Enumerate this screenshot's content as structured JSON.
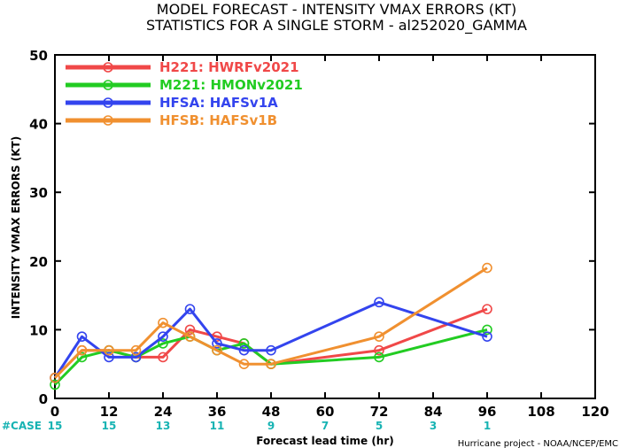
{
  "chart_data": {
    "type": "line",
    "title": "MODEL FORECAST - INTENSITY VMAX ERRORS (KT)",
    "subtitle": "STATISTICS FOR A SINGLE STORM - al252020_GAMMA",
    "xlabel": "Forecast lead time (hr)",
    "ylabel": "INTENSITY VMAX ERRORS (KT)",
    "xlim": [
      0,
      120
    ],
    "ylim": [
      0,
      50
    ],
    "xticks": [
      0,
      12,
      24,
      36,
      48,
      60,
      72,
      84,
      96,
      108,
      120
    ],
    "yticks": [
      0,
      10,
      20,
      30,
      40,
      50
    ],
    "series": [
      {
        "name": "H221: HWRFv2021",
        "color": "#f04848",
        "x": [
          0,
          6,
          12,
          18,
          24,
          30,
          36,
          42,
          48,
          72,
          96
        ],
        "y": [
          3,
          7,
          7,
          6,
          6,
          10,
          9,
          8,
          5,
          7,
          13
        ]
      },
      {
        "name": "M221: HMONv2021",
        "color": "#22cc22",
        "x": [
          0,
          6,
          12,
          18,
          24,
          30,
          36,
          42,
          48,
          72,
          96
        ],
        "y": [
          2,
          6,
          7,
          6,
          8,
          9,
          7,
          8,
          5,
          6,
          10
        ]
      },
      {
        "name": "HFSA: HAFSv1A",
        "color": "#3344ee",
        "x": [
          0,
          6,
          12,
          18,
          24,
          30,
          36,
          42,
          48,
          72,
          96
        ],
        "y": [
          3,
          9,
          6,
          6,
          9,
          13,
          8,
          7,
          7,
          14,
          9
        ]
      },
      {
        "name": "HFSB: HAFSv1B",
        "color": "#f09030",
        "x": [
          0,
          6,
          12,
          18,
          24,
          30,
          36,
          42,
          48,
          72,
          96
        ],
        "y": [
          3,
          7,
          7,
          7,
          11,
          9,
          7,
          5,
          5,
          9,
          19
        ]
      }
    ],
    "legend_placement": "top-left",
    "grid": false
  },
  "case_label": "#CASE",
  "cases": [
    {
      "x": 0,
      "count": "15"
    },
    {
      "x": 12,
      "count": "15"
    },
    {
      "x": 24,
      "count": "13"
    },
    {
      "x": 36,
      "count": "11"
    },
    {
      "x": 48,
      "count": "9"
    },
    {
      "x": 60,
      "count": "7"
    },
    {
      "x": 72,
      "count": "5"
    },
    {
      "x": 84,
      "count": "3"
    },
    {
      "x": 96,
      "count": "1"
    }
  ],
  "credit": "Hurricane project - NOAA/NCEP/EMC"
}
